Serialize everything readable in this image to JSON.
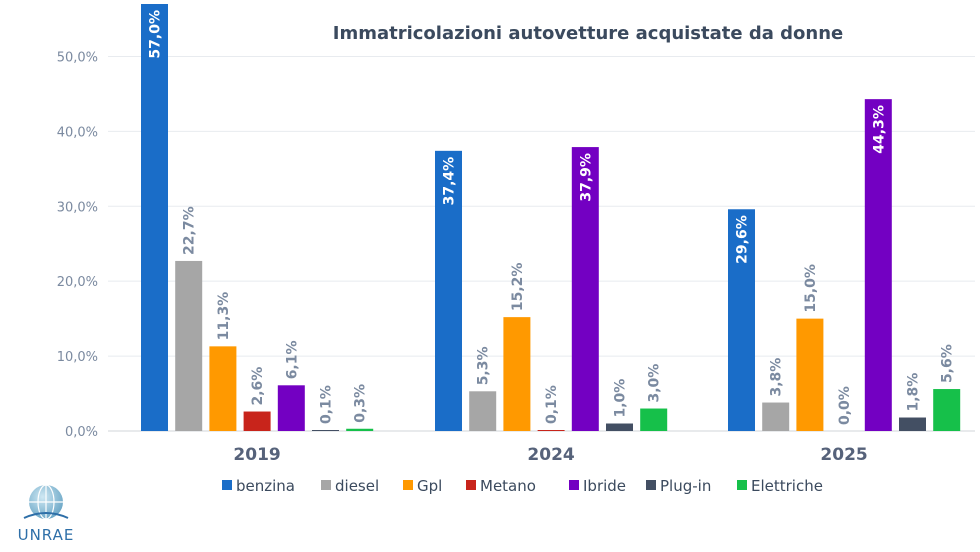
{
  "chart_data": {
    "type": "bar",
    "title": "Immatricolazioni autovetture acquistate da donne",
    "categories": [
      "2019",
      "2024",
      "2025"
    ],
    "ylim": [
      0,
      57
    ],
    "yticks": [
      "0,0%",
      "10,0%",
      "20,0%",
      "30,0%",
      "40,0%",
      "50,0%"
    ],
    "ytick_values": [
      0,
      10,
      20,
      30,
      40,
      50
    ],
    "series": [
      {
        "name": "benzina",
        "color": "#1a6dc8",
        "values": [
          57.0,
          37.4,
          29.6
        ],
        "labels": [
          "57,0%",
          "37,4%",
          "29,6%"
        ]
      },
      {
        "name": "diesel",
        "color": "#a6a6a6",
        "values": [
          22.7,
          5.3,
          3.8
        ],
        "labels": [
          "22,7%",
          "5,3%",
          "3,8%"
        ]
      },
      {
        "name": "Gpl",
        "color": "#ff9900",
        "values": [
          11.3,
          15.2,
          15.0
        ],
        "labels": [
          "11,3%",
          "15,2%",
          "15,0%"
        ]
      },
      {
        "name": "Metano",
        "color": "#c8241b",
        "values": [
          2.6,
          0.1,
          0.0
        ],
        "labels": [
          "2,6%",
          "0,1%",
          "0,0%"
        ]
      },
      {
        "name": "Ibride",
        "color": "#7300c2",
        "values": [
          6.1,
          37.9,
          44.3
        ],
        "labels": [
          "6,1%",
          "37,9%",
          "44,3%"
        ]
      },
      {
        "name": "Plug-in",
        "color": "#434f63",
        "values": [
          0.1,
          1.0,
          1.8
        ],
        "labels": [
          "0,1%",
          "1,0%",
          "1,8%"
        ]
      },
      {
        "name": "Elettriche",
        "color": "#16c04a",
        "values": [
          0.3,
          3.0,
          5.6
        ],
        "labels": [
          "0,3%",
          "3,0%",
          "5,6%"
        ]
      }
    ],
    "legend_position": "bottom",
    "grid": true
  },
  "logo": {
    "text": "UNRAE"
  }
}
